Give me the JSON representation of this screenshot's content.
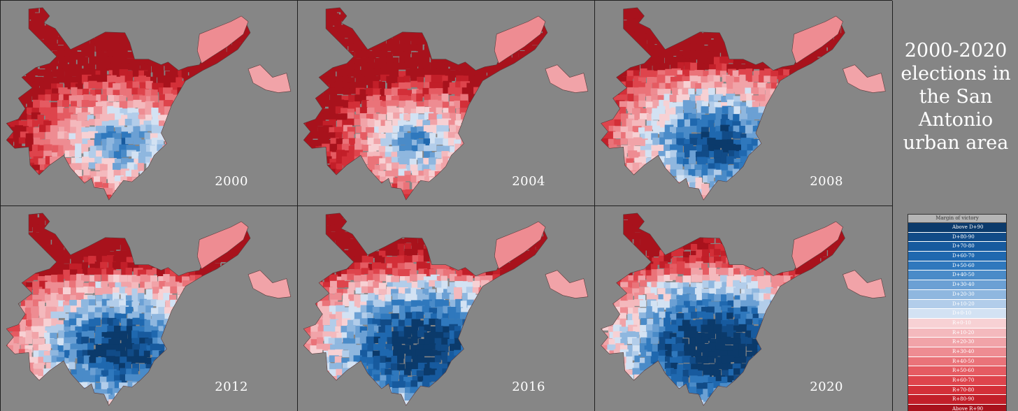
{
  "title": "2000-2020\nelections in\nthe San\nAntonio\nurban area",
  "maps": [
    {
      "year": "2000",
      "lean": -0.35
    },
    {
      "year": "2004",
      "lean": -0.45
    },
    {
      "year": "2008",
      "lean": 0.05
    },
    {
      "year": "2012",
      "lean": 0.2
    },
    {
      "year": "2016",
      "lean": 0.35
    },
    {
      "year": "2020",
      "lean": 0.45
    }
  ],
  "legend": {
    "title": "Margin of victory",
    "items": [
      {
        "label": "Above D+90",
        "color": "#0b3a6b"
      },
      {
        "label": "D+80-90",
        "color": "#114b87"
      },
      {
        "label": "D+70-80",
        "color": "#175a9e"
      },
      {
        "label": "D+60-70",
        "color": "#1f68af"
      },
      {
        "label": "D+50-60",
        "color": "#2f78bd"
      },
      {
        "label": "D+40-50",
        "color": "#4a8bc8"
      },
      {
        "label": "D+30-40",
        "color": "#6ba0d4"
      },
      {
        "label": "D+20-30",
        "color": "#8fb7df"
      },
      {
        "label": "D+10-20",
        "color": "#b2cdea"
      },
      {
        "label": "D+0-10",
        "color": "#d3e2f3"
      },
      {
        "label": "R+0-10",
        "color": "#f7d1d4"
      },
      {
        "label": "R+10-20",
        "color": "#f4b9bd"
      },
      {
        "label": "R+20-30",
        "color": "#f1a3a8"
      },
      {
        "label": "R+30-40",
        "color": "#ee8c92"
      },
      {
        "label": "R+40-50",
        "color": "#ea7379"
      },
      {
        "label": "R+50-60",
        "color": "#e55b62"
      },
      {
        "label": "R+60-70",
        "color": "#de444c"
      },
      {
        "label": "R+70-80",
        "color": "#d32f38"
      },
      {
        "label": "R+80-90",
        "color": "#c21f29"
      },
      {
        "label": "Above R+90",
        "color": "#a8121c"
      }
    ]
  }
}
